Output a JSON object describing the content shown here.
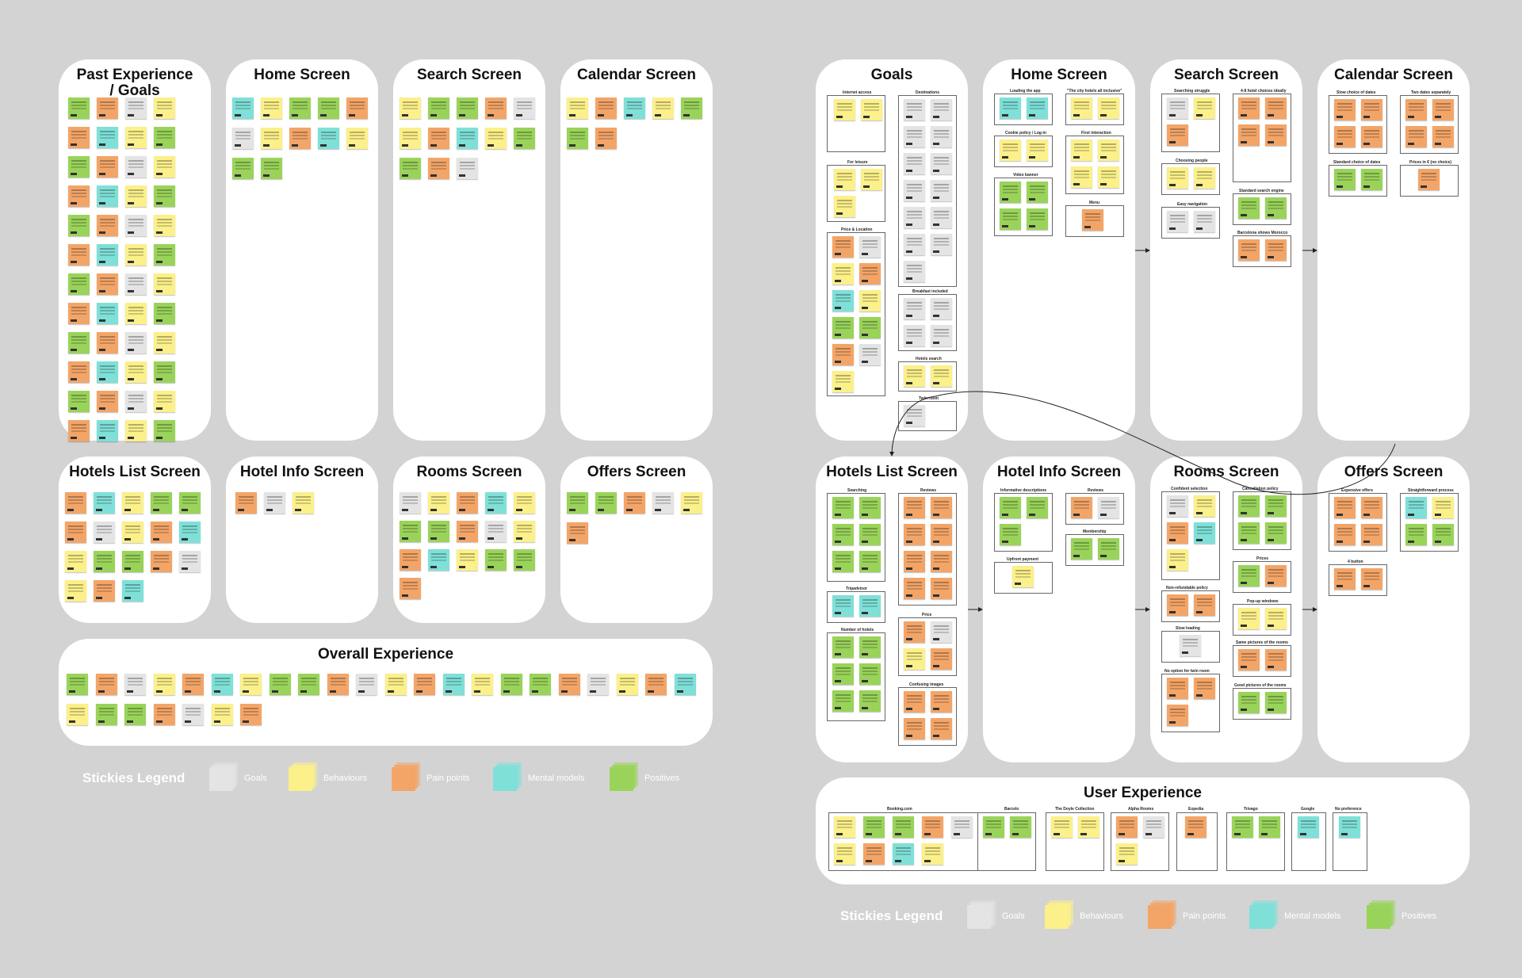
{
  "board": {
    "left": {
      "panels": [
        {
          "title": "Past Experience / Goals"
        },
        {
          "title": "Home Screen"
        },
        {
          "title": "Search Screen"
        },
        {
          "title": "Calendar Screen"
        },
        {
          "title": "Hotels List Screen"
        },
        {
          "title": "Hotel Info Screen"
        },
        {
          "title": "Rooms Screen"
        },
        {
          "title": "Offers Screen"
        },
        {
          "title": "Overall Experience"
        }
      ],
      "legend": {
        "title": "Stickies Legend",
        "items": [
          {
            "label": "Goals",
            "color": "#e4e4e4"
          },
          {
            "label": "Behaviours",
            "color": "#fbf08a"
          },
          {
            "label": "Pain points",
            "color": "#f3a568"
          },
          {
            "label": "Mental models",
            "color": "#7fe0d8"
          },
          {
            "label": "Positives",
            "color": "#9ad35a"
          }
        ]
      }
    },
    "right": {
      "panels": [
        {
          "title": "Goals"
        },
        {
          "title": "Home Screen"
        },
        {
          "title": "Search Screen"
        },
        {
          "title": "Calendar Screen"
        },
        {
          "title": "Hotels List Screen"
        },
        {
          "title": "Hotel Info Screen"
        },
        {
          "title": "Rooms Screen"
        },
        {
          "title": "Offers Screen"
        },
        {
          "title": "User Experience"
        }
      ],
      "groups": {
        "goals": [
          "Internet access",
          "Destinations",
          "For leisure",
          "Price & Location",
          "Breakfast included",
          "Hotels search",
          "Twin room"
        ],
        "home": [
          "Loading the app",
          "\"The city hotels all inclusive\"",
          "Cookie policy / Log-in",
          "First interaction",
          "Video banner",
          "Menu"
        ],
        "search": [
          "Searching struggle",
          "4-8 hotel choices ideally",
          "Choosing people",
          "Easy navigation",
          "Standard search engine",
          "Barcelona shows Morocco"
        ],
        "calendar": [
          "Slow choice of dates",
          "Two dates separately",
          "Standard choice of dates",
          "Prices in € (no choice)"
        ],
        "hotels": [
          "Searching",
          "Reviews",
          "Tripadvisor",
          "Price",
          "Number of hotels",
          "Confusing images"
        ],
        "info": [
          "Informative descriptions",
          "Reviews",
          "Membership",
          "Upfront payment"
        ],
        "rooms": [
          "Confident selection",
          "Cancellation policy",
          "Prices",
          "Non-refundable policy",
          "Pop-up windows",
          "Slow loading",
          "Same pictures of the rooms",
          "No option for twin room",
          "Good pictures of the rooms"
        ],
        "offers": [
          "Expensive offers",
          "Straightforward process",
          "4 button"
        ],
        "ux": [
          "Booking.com",
          "Barcelo",
          "The Doyle Collection",
          "Alpha Rooms",
          "Expedia",
          "Trivago",
          "Google",
          "No preference"
        ]
      },
      "legend": {
        "title": "Stickies Legend",
        "items": [
          {
            "label": "Goals",
            "color": "#e4e4e4"
          },
          {
            "label": "Behaviours",
            "color": "#fbf08a"
          },
          {
            "label": "Pain points",
            "color": "#f3a568"
          },
          {
            "label": "Mental models",
            "color": "#7fe0d8"
          },
          {
            "label": "Positives",
            "color": "#9ad35a"
          }
        ]
      }
    }
  }
}
